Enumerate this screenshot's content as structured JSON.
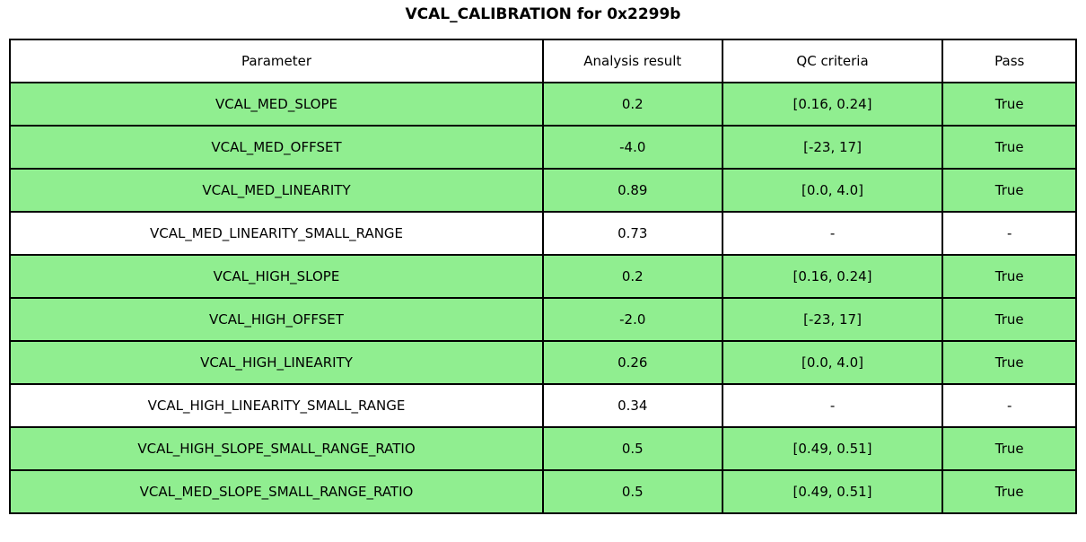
{
  "title": "VCAL_CALIBRATION for 0x2299b",
  "colors": {
    "pass_row_bg": "#90ee90",
    "neutral_row_bg": "#ffffff",
    "border": "#000000",
    "text": "#000000"
  },
  "chart_data": {
    "type": "table",
    "title": "VCAL_CALIBRATION for 0x2299b",
    "columns": [
      "Parameter",
      "Analysis result",
      "QC criteria",
      "Pass"
    ],
    "rows": [
      {
        "cells": [
          "VCAL_MED_SLOPE",
          "0.2",
          "[0.16, 0.24]",
          "True"
        ],
        "pass_highlight": true
      },
      {
        "cells": [
          "VCAL_MED_OFFSET",
          "-4.0",
          "[-23, 17]",
          "True"
        ],
        "pass_highlight": true
      },
      {
        "cells": [
          "VCAL_MED_LINEARITY",
          "0.89",
          "[0.0, 4.0]",
          "True"
        ],
        "pass_highlight": true
      },
      {
        "cells": [
          "VCAL_MED_LINEARITY_SMALL_RANGE",
          "0.73",
          "-",
          "-"
        ],
        "pass_highlight": false
      },
      {
        "cells": [
          "VCAL_HIGH_SLOPE",
          "0.2",
          "[0.16, 0.24]",
          "True"
        ],
        "pass_highlight": true
      },
      {
        "cells": [
          "VCAL_HIGH_OFFSET",
          "-2.0",
          "[-23, 17]",
          "True"
        ],
        "pass_highlight": true
      },
      {
        "cells": [
          "VCAL_HIGH_LINEARITY",
          "0.26",
          "[0.0, 4.0]",
          "True"
        ],
        "pass_highlight": true
      },
      {
        "cells": [
          "VCAL_HIGH_LINEARITY_SMALL_RANGE",
          "0.34",
          "-",
          "-"
        ],
        "pass_highlight": false
      },
      {
        "cells": [
          "VCAL_HIGH_SLOPE_SMALL_RANGE_RATIO",
          "0.5",
          "[0.49, 0.51]",
          "True"
        ],
        "pass_highlight": true
      },
      {
        "cells": [
          "VCAL_MED_SLOPE_SMALL_RANGE_RATIO",
          "0.5",
          "[0.49, 0.51]",
          "True"
        ],
        "pass_highlight": true
      }
    ]
  }
}
